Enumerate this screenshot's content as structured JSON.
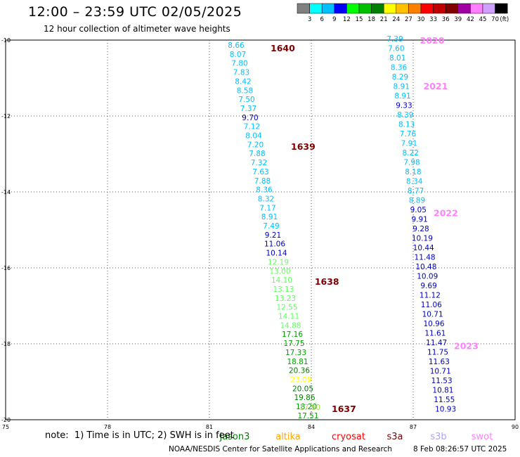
{
  "title": "12:00 – 23:59 UTC 02/05/2025",
  "subtitle": "12 hour collection of altimeter wave heights",
  "note": "note:  1) Time is in UTC; 2) SWH is in feet",
  "footer_org": "NOAA/NESDIS Center for Satellite Applications and Research",
  "footer_time": "8 Feb 08:26:57 UTC 2025",
  "colorbar": {
    "unit": "(ft)",
    "labels": [
      "3",
      "6",
      "9",
      "12",
      "15",
      "18",
      "21",
      "24",
      "27",
      "30",
      "33",
      "36",
      "39",
      "42",
      "45",
      "70"
    ],
    "colors": [
      "#808080",
      "#00ffff",
      "#00c0ff",
      "#0000ff",
      "#00ff00",
      "#00c000",
      "#008000",
      "#ffff00",
      "#ffc000",
      "#ff8000",
      "#ff0000",
      "#c00000",
      "#800000",
      "#a000a0",
      "#ff80ff",
      "#d0a0ff",
      "#000000"
    ]
  },
  "satellites": [
    {
      "name": "jason3",
      "color": "#008000"
    },
    {
      "name": "altika",
      "color": "#ffa500"
    },
    {
      "name": "cryosat",
      "color": "#ff0000"
    },
    {
      "name": "s3a",
      "color": "#800000"
    },
    {
      "name": "s3b",
      "color": "#b0a0ff"
    },
    {
      "name": "swot",
      "color": "#ff80ff"
    }
  ],
  "map": {
    "lon_range": [
      75,
      90
    ],
    "lat_range": [
      -20,
      -10
    ],
    "lon_ticks": [
      "75",
      "78",
      "81",
      "84",
      "87",
      "90"
    ],
    "lat_ticks": [
      "-10",
      "-12",
      "-14",
      "-16",
      "-18",
      "-20"
    ],
    "grid": true
  },
  "passes": [
    {
      "id": "1640",
      "color": "#800000",
      "lon": 82.8,
      "lat": -10.2
    },
    {
      "id": "1639",
      "color": "#800000",
      "lon": 83.4,
      "lat": -12.8
    },
    {
      "id": "1638",
      "color": "#800000",
      "lon": 84.1,
      "lat": -16.35
    },
    {
      "id": "1637",
      "color": "#800000",
      "lon": 84.6,
      "lat": -19.7
    },
    {
      "id": "2020",
      "color": "#ff80ff",
      "lon": 87.2,
      "lat": -10.0
    },
    {
      "id": "2021",
      "color": "#ff80ff",
      "lon": 87.3,
      "lat": -11.2
    },
    {
      "id": "2022",
      "color": "#ff80ff",
      "lon": 87.6,
      "lat": -14.55
    },
    {
      "id": "2023",
      "color": "#ff80ff",
      "lon": 88.2,
      "lat": -18.05
    }
  ],
  "track1": [
    {
      "v": "8.66",
      "c": "#00c0ff"
    },
    {
      "v": "8.07",
      "c": "#00c0ff"
    },
    {
      "v": "7.80",
      "c": "#00c0ff"
    },
    {
      "v": "7.83",
      "c": "#00c0ff"
    },
    {
      "v": "8.42",
      "c": "#00c0ff"
    },
    {
      "v": "8.58",
      "c": "#00c0ff"
    },
    {
      "v": "7.50",
      "c": "#00c0ff"
    },
    {
      "v": "7.37",
      "c": "#00c0ff"
    },
    {
      "v": "9.70",
      "c": "#0000c0"
    },
    {
      "v": "7.12",
      "c": "#00c0ff"
    },
    {
      "v": "8.04",
      "c": "#00c0ff"
    },
    {
      "v": "7.20",
      "c": "#00c0ff"
    },
    {
      "v": "7.88",
      "c": "#00c0ff"
    },
    {
      "v": "7.32",
      "c": "#00c0ff"
    },
    {
      "v": "7.63",
      "c": "#00c0ff"
    },
    {
      "v": "7.88",
      "c": "#00c0ff"
    },
    {
      "v": "8.36",
      "c": "#00c0ff"
    },
    {
      "v": "8.32",
      "c": "#00c0ff"
    },
    {
      "v": "7.17",
      "c": "#00c0ff"
    },
    {
      "v": "8.91",
      "c": "#00c0ff"
    },
    {
      "v": "7.49",
      "c": "#00c0ff"
    },
    {
      "v": "9.21",
      "c": "#0000c0"
    },
    {
      "v": "11.06",
      "c": "#0000c0"
    },
    {
      "v": "10.14",
      "c": "#0000c0"
    },
    {
      "v": "12.19",
      "c": "#60ff60"
    },
    {
      "v": "13.00",
      "c": "#60ff60"
    },
    {
      "v": "14.10",
      "c": "#60ff60"
    },
    {
      "v": "13.13",
      "c": "#60ff60"
    },
    {
      "v": "13.23",
      "c": "#60ff60"
    },
    {
      "v": "12.55",
      "c": "#60ff60"
    },
    {
      "v": "14.11",
      "c": "#60ff60"
    },
    {
      "v": "14.88",
      "c": "#60ff60"
    },
    {
      "v": "17.16",
      "c": "#00a000"
    },
    {
      "v": "17.75",
      "c": "#00a000"
    },
    {
      "v": "17.33",
      "c": "#00a000"
    },
    {
      "v": "18.81",
      "c": "#00a000"
    },
    {
      "v": "20.36",
      "c": "#008000"
    },
    {
      "v": "23.09",
      "c": "#ffff00"
    },
    {
      "v": "20.05",
      "c": "#008000"
    },
    {
      "v": "19.86",
      "c": "#008000"
    },
    {
      "v": "18.20",
      "c": "#00a000"
    },
    {
      "v": "17.51",
      "c": "#00a000"
    }
  ],
  "track2": [
    {
      "v": "7.39",
      "c": "#00c0ff"
    },
    {
      "v": "7.60",
      "c": "#00c0ff"
    },
    {
      "v": "8.01",
      "c": "#00c0ff"
    },
    {
      "v": "8.36",
      "c": "#00c0ff"
    },
    {
      "v": "8.29",
      "c": "#00c0ff"
    },
    {
      "v": "8.91",
      "c": "#00c0ff"
    },
    {
      "v": "8.91",
      "c": "#00c0ff"
    },
    {
      "v": "9.33",
      "c": "#0000c0"
    },
    {
      "v": "8.39",
      "c": "#00c0ff"
    },
    {
      "v": "8.13",
      "c": "#00c0ff"
    },
    {
      "v": "7.76",
      "c": "#00c0ff"
    },
    {
      "v": "7.91",
      "c": "#00c0ff"
    },
    {
      "v": "8.22",
      "c": "#00c0ff"
    },
    {
      "v": "7.98",
      "c": "#00c0ff"
    },
    {
      "v": "8.18",
      "c": "#00c0ff"
    },
    {
      "v": "8.34",
      "c": "#00c0ff"
    },
    {
      "v": "8.77",
      "c": "#00c0ff"
    },
    {
      "v": "8.89",
      "c": "#00c0ff"
    },
    {
      "v": "9.05",
      "c": "#0000c0"
    },
    {
      "v": "9.91",
      "c": "#0000c0"
    },
    {
      "v": "9.28",
      "c": "#0000c0"
    },
    {
      "v": "10.19",
      "c": "#0000c0"
    },
    {
      "v": "10.44",
      "c": "#0000c0"
    },
    {
      "v": "11.48",
      "c": "#0000c0"
    },
    {
      "v": "10.48",
      "c": "#0000c0"
    },
    {
      "v": "10.09",
      "c": "#0000c0"
    },
    {
      "v": "9.69",
      "c": "#0000c0"
    },
    {
      "v": "11.12",
      "c": "#0000c0"
    },
    {
      "v": "11.06",
      "c": "#0000c0"
    },
    {
      "v": "10.71",
      "c": "#0000c0"
    },
    {
      "v": "10.96",
      "c": "#0000c0"
    },
    {
      "v": "11.61",
      "c": "#0000c0"
    },
    {
      "v": "11.47",
      "c": "#0000c0"
    },
    {
      "v": "11.75",
      "c": "#0000c0"
    },
    {
      "v": "11.63",
      "c": "#0000c0"
    },
    {
      "v": "10.71",
      "c": "#0000c0"
    },
    {
      "v": "11.53",
      "c": "#0000c0"
    },
    {
      "v": "10.81",
      "c": "#0000c0"
    },
    {
      "v": "11.55",
      "c": "#0000c0"
    },
    {
      "v": "10.93",
      "c": "#0000c0"
    }
  ],
  "track3_overlap": {
    "v": "17.80",
    "c": "#a0e040"
  }
}
